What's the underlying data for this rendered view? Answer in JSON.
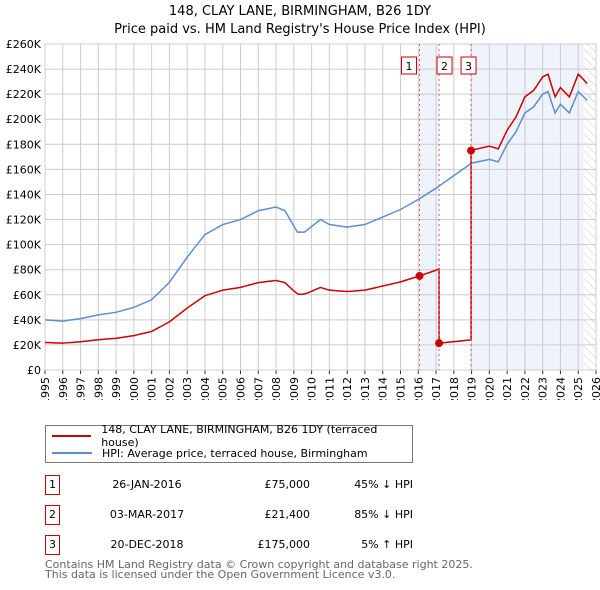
{
  "title": "148, CLAY LANE, BIRMINGHAM, B26 1DY",
  "subtitle": "Price paid vs. HM Land Registry's House Price Index (HPI)",
  "chart_data": {
    "type": "line",
    "xlim": [
      1995,
      2026
    ],
    "ylim": [
      0,
      260000
    ],
    "x_ticks": [
      "1995",
      "1996",
      "1997",
      "1998",
      "1999",
      "2000",
      "2001",
      "2002",
      "2003",
      "2004",
      "2005",
      "2006",
      "2007",
      "2008",
      "2009",
      "2010",
      "2011",
      "2012",
      "2013",
      "2014",
      "2015",
      "2016",
      "2017",
      "2018",
      "2019",
      "2020",
      "2021",
      "2022",
      "2023",
      "2024",
      "2025",
      "2026"
    ],
    "y_ticks": [
      "£0",
      "£20K",
      "£40K",
      "£60K",
      "£80K",
      "£100K",
      "£120K",
      "£140K",
      "£160K",
      "£180K",
      "£200K",
      "£220K",
      "£240K",
      "£260K"
    ],
    "grid": true,
    "series": [
      {
        "name": "HPI: Average price, terraced house, Birmingham",
        "color": "#5b8fd4",
        "x": [
          1995,
          1996,
          1997,
          1998,
          1999,
          2000,
          2001,
          2002,
          2003,
          2004,
          2005,
          2006,
          2007,
          2008,
          2008.5,
          2009.2,
          2009.6,
          2010.5,
          2011,
          2012,
          2013,
          2014,
          2015,
          2016,
          2017,
          2018,
          2019,
          2020,
          2020.5,
          2021,
          2021.5,
          2022,
          2022.5,
          2023,
          2023.3,
          2023.7,
          2024,
          2024.5,
          2025,
          2025.3,
          2025.5
        ],
        "y": [
          40000,
          39000,
          41000,
          44000,
          46000,
          50000,
          56000,
          70000,
          90000,
          108000,
          116000,
          120000,
          127000,
          130000,
          127000,
          110000,
          110000,
          120000,
          116000,
          114000,
          116000,
          122000,
          128000,
          136000,
          145000,
          155000,
          165000,
          168000,
          166000,
          180000,
          190000,
          205000,
          210000,
          220000,
          222000,
          205000,
          212000,
          205000,
          222000,
          218000,
          215000
        ]
      },
      {
        "name": "148, CLAY LANE, BIRMINGHAM, B26 1DY (terraced house)",
        "color": "#cc0000"
      }
    ],
    "sales": [
      {
        "num": "1",
        "x": 2016.07,
        "date": "26-JAN-2016",
        "price_value": 75000,
        "price": "£75,000",
        "hpi": "45% ↓ HPI"
      },
      {
        "num": "2",
        "x": 2017.17,
        "date": "03-MAR-2017",
        "price_value": 21400,
        "price": "£21,400",
        "hpi": "85% ↓ HPI"
      },
      {
        "num": "3",
        "x": 2018.97,
        "date": "20-DEC-2018",
        "price_value": 175000,
        "price": "£175,000",
        "hpi": "5% ↑ HPI"
      }
    ],
    "shaded": [
      [
        2016.07,
        2017.17
      ],
      [
        2018.97,
        2025.3
      ]
    ],
    "hatched_from": 2025.3
  },
  "legend": {
    "red": "148, CLAY LANE, BIRMINGHAM, B26 1DY (terraced house)",
    "blue": "HPI: Average price, terraced house, Birmingham"
  },
  "footer": [
    "Contains HM Land Registry data © Crown copyright and database right 2025.",
    "This data is licensed under the Open Government Licence v3.0."
  ]
}
